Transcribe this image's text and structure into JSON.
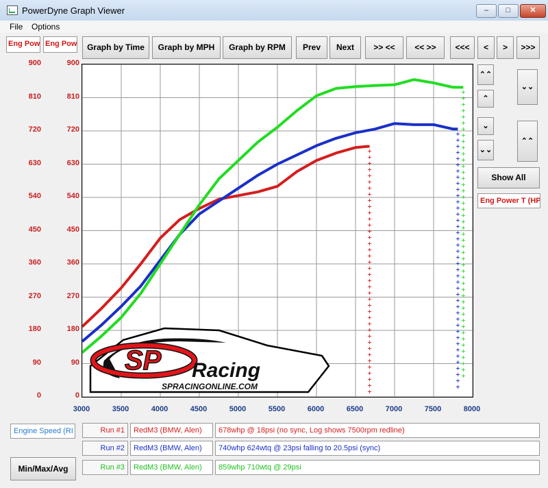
{
  "window": {
    "title": "PowerDyne Graph Viewer",
    "btn_min": "–",
    "btn_max": "□",
    "btn_close": "✕"
  },
  "menu": {
    "file": "File",
    "options": "Options"
  },
  "axis_headers": {
    "left1": "Eng Pow",
    "left2": "Eng Pow"
  },
  "toolbar": {
    "graph_time": "Graph by Time",
    "graph_mph": "Graph by MPH",
    "graph_rpm": "Graph by RPM",
    "prev": "Prev",
    "next": "Next",
    "zoom_in": ">> <<",
    "zoom_out": "<< >>",
    "first": "<<<",
    "left": "<",
    "right": ">",
    "last": ">>>"
  },
  "side": {
    "up2": "⌃⌃",
    "up": "⌃",
    "down": "⌄",
    "down2": "⌄⌄",
    "scale_up": "⌄⌄",
    "scale_down": "⌃⌃",
    "show_all": "Show All",
    "channel": "Eng Power T (HP"
  },
  "chart_data": {
    "type": "line",
    "xlim": [
      3000,
      8000
    ],
    "ylim": [
      0,
      900
    ],
    "x_ticks": [
      "3000",
      "3500",
      "4000",
      "4500",
      "5000",
      "5500",
      "6000",
      "6500",
      "7000",
      "7500",
      "8000"
    ],
    "y_ticks": [
      "900",
      "810",
      "720",
      "630",
      "540",
      "450",
      "360",
      "270",
      "180",
      "90",
      "0"
    ],
    "grid": true,
    "series": [
      {
        "name": "Run #1",
        "color": "#d41e1e",
        "marker": "+",
        "x": [
          3000,
          3250,
          3500,
          3750,
          4000,
          4250,
          4500,
          4750,
          5000,
          5250,
          5500,
          5750,
          6000,
          6250,
          6500,
          6650
        ],
        "y": [
          190,
          240,
          295,
          360,
          430,
          480,
          510,
          535,
          545,
          555,
          570,
          610,
          640,
          660,
          675,
          678
        ],
        "drop_x": 6680,
        "drop_to": 5
      },
      {
        "name": "Run #2",
        "color": "#1a2fc8",
        "marker": "+",
        "x": [
          3000,
          3250,
          3500,
          3750,
          4000,
          4250,
          4500,
          4750,
          5000,
          5250,
          5500,
          5750,
          6000,
          6250,
          6500,
          6750,
          7000,
          7250,
          7500,
          7750
        ],
        "y": [
          150,
          195,
          245,
          300,
          370,
          440,
          495,
          530,
          565,
          600,
          630,
          655,
          680,
          700,
          715,
          725,
          740,
          737,
          737,
          725
        ],
        "drop_x": 7810,
        "drop_to": 20
      },
      {
        "name": "Run #3",
        "color": "#22dc22",
        "marker": "+",
        "x": [
          3000,
          3250,
          3500,
          3750,
          4000,
          4250,
          4500,
          4750,
          5000,
          5250,
          5500,
          5750,
          6000,
          6250,
          6500,
          6750,
          7000,
          7250,
          7500,
          7750
        ],
        "y": [
          120,
          165,
          215,
          280,
          360,
          440,
          520,
          590,
          640,
          690,
          730,
          775,
          815,
          835,
          840,
          843,
          845,
          859,
          850,
          838
        ],
        "drop_x": 7880,
        "drop_to": 50
      }
    ]
  },
  "logo": {
    "line1": "Racing",
    "line2": "SPRACINGONLINE.COM"
  },
  "bottom": {
    "engine_speed": "Engine Speed (RI",
    "min_max_avg": "Min/Max/Avg",
    "runs": [
      {
        "label": "Run #1",
        "car": "RedM3 (BMW, Alen)",
        "desc": "678whp @ 18psi (no sync, Log shows 7500rpm redline)",
        "color": "#d41e1e"
      },
      {
        "label": "Run #2",
        "car": "RedM3 (BMW, Alen)",
        "desc": "740whp 624wtq @ 23psi falling to 20.5psi (sync)",
        "color": "#1a2fc8"
      },
      {
        "label": "Run #3",
        "car": "RedM3 (BMW, Alen)",
        "desc": "859whp 710wtq @ 29psi",
        "color": "#22dc22"
      }
    ]
  }
}
